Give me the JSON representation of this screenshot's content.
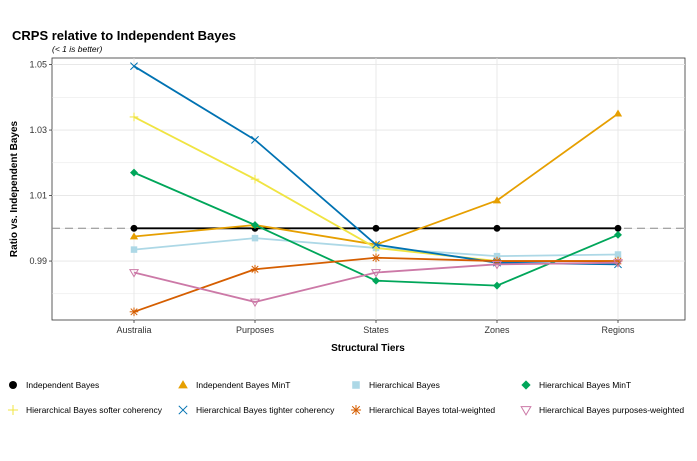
{
  "chart_data": {
    "type": "line",
    "title": "CRPS relative to Independent Bayes",
    "subtitle": "(< 1 is better)",
    "xlabel": "Structural Tiers",
    "ylabel": "Ratio vs. Independent Bayes",
    "categories": [
      "Australia",
      "Purposes",
      "States",
      "Zones",
      "Regions"
    ],
    "ylim": [
      0.972,
      1.052
    ],
    "yticks": [
      0.99,
      1.01,
      1.03,
      1.05
    ],
    "yticklabels": [
      "0.99",
      "1.01",
      "1.03",
      "1.05"
    ],
    "reference_line": 1.0,
    "grid": true,
    "legend_position": "bottom",
    "series": [
      {
        "name": "Independent Bayes",
        "color": "#000000",
        "marker": "circle",
        "values": [
          1.0,
          1.0,
          1.0,
          1.0,
          1.0
        ]
      },
      {
        "name": "Independent Bayes MinT",
        "color": "#E69F00",
        "marker": "triangle",
        "values": [
          0.9975,
          1.001,
          0.995,
          1.0085,
          1.035
        ]
      },
      {
        "name": "Hierarchical Bayes",
        "color": "#ADD8E6",
        "marker": "square",
        "values": [
          0.9935,
          0.997,
          0.994,
          0.9915,
          0.992
        ]
      },
      {
        "name": "Hierarchical Bayes MinT",
        "color": "#00A65A",
        "marker": "diamond",
        "values": [
          1.017,
          1.001,
          0.984,
          0.9825,
          0.998
        ]
      },
      {
        "name": "Hierarchical Bayes softer coherency",
        "color": "#F0E442",
        "marker": "plus",
        "values": [
          1.034,
          1.015,
          0.994,
          0.99,
          0.99
        ]
      },
      {
        "name": "Hierarchical Bayes tighter coherency",
        "color": "#0072B2",
        "marker": "cross",
        "values": [
          1.0495,
          1.027,
          0.995,
          0.9895,
          0.989
        ]
      },
      {
        "name": "Hierarchical Bayes total-weighted",
        "color": "#D55E00",
        "marker": "asterisk",
        "values": [
          0.9745,
          0.9875,
          0.991,
          0.99,
          0.99
        ]
      },
      {
        "name": "Hierarchical Bayes purposes-weighted",
        "color": "#CC79A7",
        "marker": "triangle-down",
        "values": [
          0.9865,
          0.9775,
          0.9865,
          0.989,
          0.9895
        ]
      }
    ]
  }
}
